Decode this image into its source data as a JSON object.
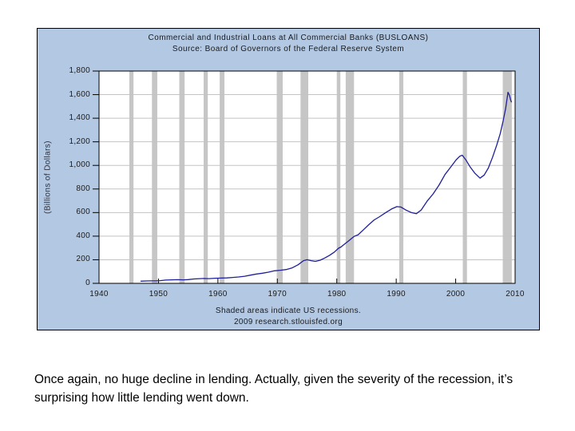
{
  "caption": {
    "text": "Once again, no huge decline in lending. Actually, given the severity of the recession, it’s surprising how little lending went down."
  },
  "chart": {
    "title": "Commercial and Industrial Loans at All Commercial Banks (BUSLOANS)",
    "subtitle": "Source: Board of Governors of the Federal Reserve System",
    "ylabel": "(Billions of Dollars)",
    "footnote1": "Shaded areas indicate US recessions.",
    "footnote2": "2009 research.stlouisfed.org",
    "colors": {
      "figure_background": "#b3c8e2",
      "plot_background": "#ffffff",
      "line": "#1f1f99",
      "recession_band": "#c6c6c6",
      "gridline": "#c3c3c3",
      "axis": "#000000",
      "text": "#1a1a1a"
    }
  },
  "chart_data": {
    "type": "line",
    "title": "Commercial and Industrial Loans at All Commercial Banks (BUSLOANS)",
    "subtitle": "Source: Board of Governors of the Federal Reserve System",
    "xlabel": "",
    "ylabel": "(Billions of Dollars)",
    "xlim": [
      1940,
      2010
    ],
    "ylim": [
      0,
      1800
    ],
    "grid": true,
    "legend": "none",
    "x_ticks": [
      1940,
      1950,
      1960,
      1970,
      1980,
      1990,
      2000,
      2010
    ],
    "x_tick_labels": [
      "1940",
      "1950",
      "1960",
      "1970",
      "1980",
      "1990",
      "2000",
      "2010"
    ],
    "y_ticks": [
      0,
      200,
      400,
      600,
      800,
      1000,
      1200,
      1400,
      1600,
      1800
    ],
    "y_tick_labels": [
      "0",
      "200",
      "400",
      "600",
      "800",
      "1,000",
      "1,200",
      "1,400",
      "1,600",
      "1,800"
    ],
    "recessions": [
      [
        1945.1,
        1945.8
      ],
      [
        1948.9,
        1949.8
      ],
      [
        1953.5,
        1954.4
      ],
      [
        1957.6,
        1958.3
      ],
      [
        1960.3,
        1961.1
      ],
      [
        1969.9,
        1970.9
      ],
      [
        1973.9,
        1975.2
      ],
      [
        1980.0,
        1980.6
      ],
      [
        1981.5,
        1982.9
      ],
      [
        1990.5,
        1991.2
      ],
      [
        2001.2,
        2001.9
      ],
      [
        2007.92,
        2009.45
      ]
    ],
    "series": [
      {
        "name": "BUSLOANS",
        "points": [
          [
            1947,
            18
          ],
          [
            1948,
            20
          ],
          [
            1948.8,
            21
          ],
          [
            1949.6,
            21
          ],
          [
            1950.3,
            23
          ],
          [
            1951.2,
            28
          ],
          [
            1952.2,
            30
          ],
          [
            1953.2,
            31
          ],
          [
            1954.2,
            30
          ],
          [
            1955,
            32
          ],
          [
            1956,
            37
          ],
          [
            1957.6,
            41
          ],
          [
            1958.5,
            40
          ],
          [
            1959.5,
            43
          ],
          [
            1960.5,
            45
          ],
          [
            1961.5,
            46
          ],
          [
            1962.5,
            50
          ],
          [
            1963.5,
            54
          ],
          [
            1964.5,
            60
          ],
          [
            1965.5,
            70
          ],
          [
            1966.5,
            79
          ],
          [
            1967.5,
            86
          ],
          [
            1968.5,
            95
          ],
          [
            1969.5,
            106
          ],
          [
            1970.5,
            111
          ],
          [
            1971.5,
            117
          ],
          [
            1972.5,
            131
          ],
          [
            1973.5,
            158
          ],
          [
            1974.4,
            192
          ],
          [
            1975,
            200
          ],
          [
            1975.7,
            192
          ],
          [
            1976.4,
            186
          ],
          [
            1977.2,
            196
          ],
          [
            1978,
            215
          ],
          [
            1978.8,
            238
          ],
          [
            1979.6,
            265
          ],
          [
            1980.3,
            298
          ],
          [
            1980.7,
            308
          ],
          [
            1981.2,
            328
          ],
          [
            1982,
            360
          ],
          [
            1982.9,
            398
          ],
          [
            1983.6,
            412
          ],
          [
            1984.5,
            455
          ],
          [
            1985.4,
            498
          ],
          [
            1986.3,
            538
          ],
          [
            1987.2,
            565
          ],
          [
            1988.2,
            598
          ],
          [
            1989.2,
            630
          ],
          [
            1990.1,
            650
          ],
          [
            1990.8,
            647
          ],
          [
            1991.6,
            622
          ],
          [
            1992.5,
            601
          ],
          [
            1993.4,
            591
          ],
          [
            1994.2,
            622
          ],
          [
            1995.2,
            696
          ],
          [
            1996.2,
            758
          ],
          [
            1997.2,
            832
          ],
          [
            1998.2,
            922
          ],
          [
            1999.2,
            988
          ],
          [
            2000.1,
            1048
          ],
          [
            2000.7,
            1078
          ],
          [
            2001.1,
            1086
          ],
          [
            2001.7,
            1048
          ],
          [
            2002.4,
            990
          ],
          [
            2003.2,
            935
          ],
          [
            2004.1,
            892
          ],
          [
            2004.8,
            918
          ],
          [
            2005.5,
            978
          ],
          [
            2006.2,
            1068
          ],
          [
            2006.9,
            1170
          ],
          [
            2007.5,
            1270
          ],
          [
            2008,
            1380
          ],
          [
            2008.4,
            1480
          ],
          [
            2008.8,
            1620
          ],
          [
            2009.05,
            1595
          ],
          [
            2009.25,
            1555
          ],
          [
            2009.4,
            1535
          ]
        ]
      }
    ]
  }
}
